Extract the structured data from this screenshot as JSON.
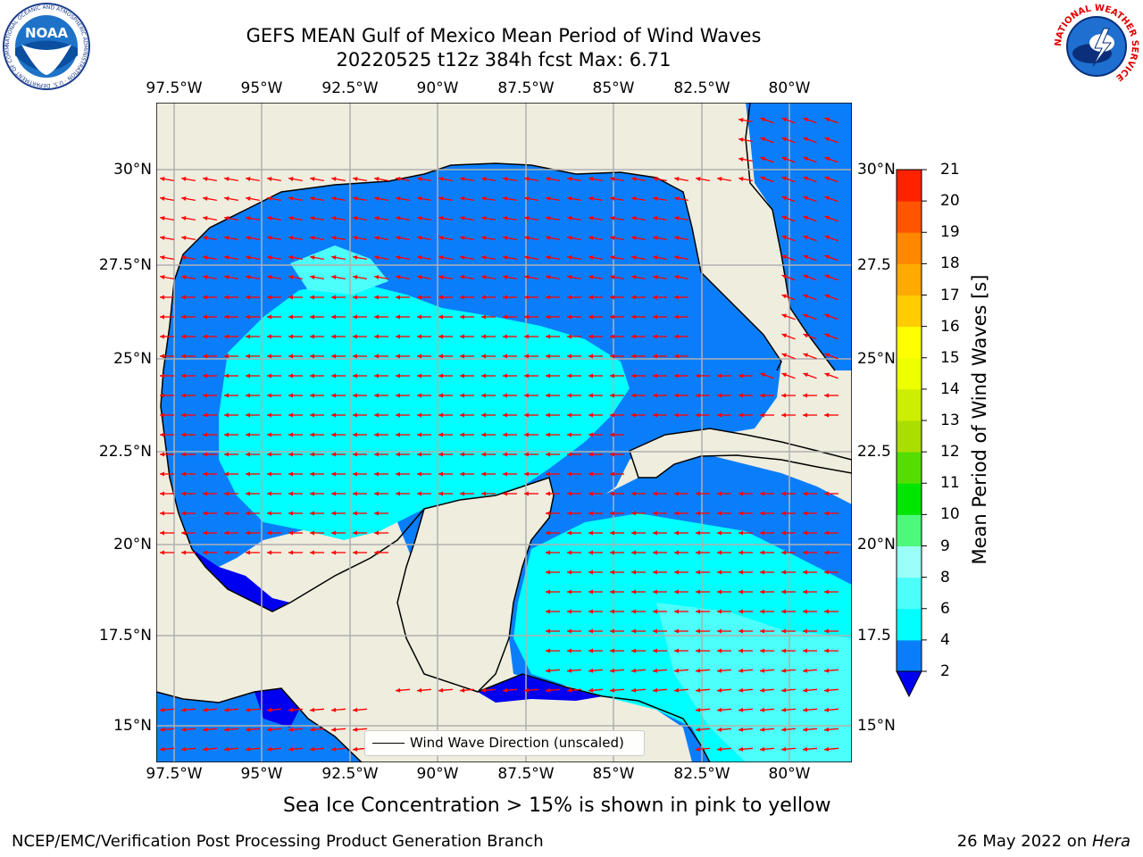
{
  "header": {
    "title_line1": "GEFS MEAN Gulf of Mexico Mean Period of Wind Waves",
    "title_line2": "20220525 t12z 384h fcst   Max: 6.71"
  },
  "map": {
    "lon_ticks_top": [
      "97.5°W",
      "95°W",
      "92.5°W",
      "90°W",
      "87.5°W",
      "85°W",
      "82.5°W",
      "80°W"
    ],
    "lon_ticks_bottom": [
      "97.5°W",
      "95°W",
      "92.5°W",
      "90°W",
      "87.5°W",
      "85°W",
      "82.5°W",
      "80°W"
    ],
    "lat_ticks_left": [
      "30°N",
      "27.5°N",
      "25°N",
      "22.5°N",
      "20°N",
      "17.5°N",
      "15°N"
    ],
    "lat_ticks_right": [
      "30°N",
      "27.5",
      "25°N",
      "22.5",
      "20°N",
      "17.5",
      "15°N"
    ],
    "legend_label": "Wind Wave Direction (unscaled)",
    "colors": {
      "land": "#efedde",
      "coast": "#000000",
      "ocean_2_4": "#0a7efa",
      "ocean_4_6": "#00ffff",
      "ocean_6_8": "#4cfffa",
      "below_2": "#0000f0",
      "arrows": "#ff0000",
      "grid": "#b0b0b0"
    }
  },
  "colorbar": {
    "label": "Mean Period of Wind Waves [s]",
    "ticks": [
      "2",
      "4",
      "6",
      "8",
      "9",
      "10",
      "11",
      "12",
      "13",
      "14",
      "15",
      "16",
      "17",
      "18",
      "19",
      "20",
      "21"
    ],
    "colors": [
      "#0a7efa",
      "#00ffff",
      "#4cfffa",
      "#99fff8",
      "#4cf97a",
      "#00e600",
      "#55dd00",
      "#aadd00",
      "#ccee00",
      "#eeff00",
      "#ffff00",
      "#ffcc00",
      "#ffaa00",
      "#ff8800",
      "#ff5500",
      "#ff2200",
      "#ff0000"
    ],
    "extend_color": "#0000f0"
  },
  "subtitle": "Sea Ice Concentration > 15% is shown in pink to yellow",
  "footer": {
    "left": "NCEP/EMC/Verification Post Processing Product Generation Branch",
    "right_date": "26 May 2022 on ",
    "right_host": "Hera"
  },
  "logos": {
    "noaa_text": "NOAA",
    "noaa_ring": "NATIONAL OCEANIC AND ATMOSPHERIC ADMINISTRATION · U.S. DEPARTMENT OF COMMERCE",
    "nws_ring": "NATIONAL WEATHER SERVICE"
  }
}
